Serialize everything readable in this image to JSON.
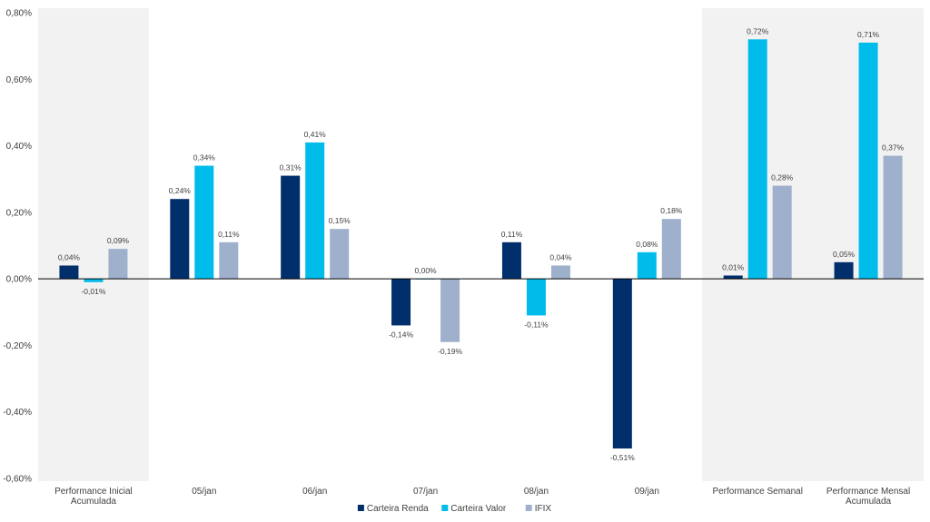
{
  "chart_data": {
    "type": "bar",
    "title": "",
    "xlabel": "",
    "ylabel": "",
    "ylim": [
      -0.6,
      0.8
    ],
    "yticks": [
      -0.6,
      -0.4,
      -0.2,
      0.0,
      0.2,
      0.4,
      0.6,
      0.8
    ],
    "ytick_labels": [
      "-0,60%",
      "-0,40%",
      "-0,20%",
      "0,00%",
      "0,20%",
      "0,40%",
      "0,60%",
      "0,80%"
    ],
    "grid": false,
    "legend_position": "bottom-center",
    "categories": [
      [
        "Performance Inicial",
        "Acumulada"
      ],
      [
        "05/jan"
      ],
      [
        "06/jan"
      ],
      [
        "07/jan"
      ],
      [
        "08/jan"
      ],
      [
        "09/jan"
      ],
      [
        "Performance Semanal"
      ],
      [
        "Performance Mensal",
        "Acumulada"
      ]
    ],
    "highlighted_categories": [
      0,
      6,
      7
    ],
    "series": [
      {
        "name": "Carteira Renda",
        "color": "#002F6C",
        "values": [
          0.04,
          0.24,
          0.31,
          -0.14,
          0.11,
          -0.51,
          0.01,
          0.05
        ],
        "labels": [
          "0,04%",
          "0,24%",
          "0,31%",
          "-0,14%",
          "0,11%",
          "-0,51%",
          "0,01%",
          "0,05%"
        ]
      },
      {
        "name": "Carteira Valor",
        "color": "#00BCEB",
        "values": [
          -0.01,
          0.34,
          0.41,
          0.0,
          -0.11,
          0.08,
          0.72,
          0.71
        ],
        "labels": [
          "-0,01%",
          "0,34%",
          "0,41%",
          "0,00%",
          "-0,11%",
          "0,08%",
          "0,72%",
          "0,71%"
        ]
      },
      {
        "name": "IFIX",
        "color": "#9FB0CC",
        "values": [
          0.09,
          0.11,
          0.15,
          -0.19,
          0.04,
          0.18,
          0.28,
          0.37
        ],
        "labels": [
          "0,09%",
          "0,11%",
          "0,15%",
          "-0,19%",
          "0,04%",
          "0,18%",
          "0,28%",
          "0,37%"
        ]
      }
    ]
  },
  "colors": {
    "highlight_band": "#F2F2F2",
    "axis_line": "#000000",
    "text": "#404040"
  }
}
